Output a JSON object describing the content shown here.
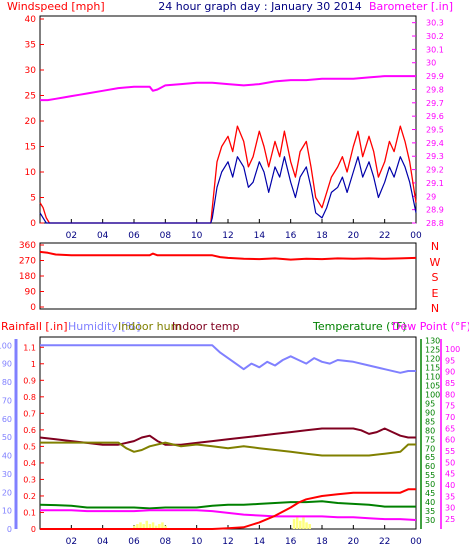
{
  "chart_data": [
    {
      "type": "line",
      "title": "24 hour graph day : January 30 2014",
      "left_axis_label": "Windspeed [mph]",
      "right_axis_label": "Barometer [.in]",
      "x_ticks": [
        "02",
        "04",
        "06",
        "08",
        "10",
        "12",
        "14",
        "16",
        "18",
        "20",
        "22",
        "00"
      ],
      "left_ticks": [
        "0",
        "5",
        "10",
        "15",
        "20",
        "25",
        "30",
        "35",
        "40"
      ],
      "right_ticks": [
        "28.8",
        "28.9",
        "29",
        "29.1",
        "29.2",
        "29.3",
        "29.4",
        "29.5",
        "29.6",
        "29.7",
        "29.8",
        "29.9",
        "30",
        "30.1",
        "30.2",
        "30.3"
      ],
      "left_range": [
        0,
        40
      ],
      "right_range": [
        28.8,
        30.35
      ],
      "x_range": [
        0,
        24
      ],
      "grid": false,
      "colors": {
        "gust": "#ff0000",
        "windspeed": "#0000aa",
        "barometer": "#ff00ff",
        "title": "#000080"
      },
      "series": [
        {
          "key": "barometer",
          "axis": "right",
          "x": [
            0,
            0.5,
            1,
            1.5,
            2,
            2.5,
            3,
            4,
            5,
            6,
            7,
            7.2,
            7.5,
            8,
            9,
            10,
            11,
            12,
            13,
            14,
            15,
            16,
            17,
            18,
            19,
            20,
            21,
            22,
            23,
            24
          ],
          "values": [
            29.72,
            29.72,
            29.73,
            29.74,
            29.75,
            29.76,
            29.77,
            29.79,
            29.81,
            29.82,
            29.82,
            29.79,
            29.8,
            29.83,
            29.84,
            29.85,
            29.85,
            29.84,
            29.83,
            29.84,
            29.86,
            29.87,
            29.87,
            29.88,
            29.88,
            29.88,
            29.89,
            29.9,
            29.9,
            29.9
          ]
        },
        {
          "key": "gust",
          "axis": "left",
          "x": [
            0,
            0.2,
            0.4,
            0.6,
            1,
            2,
            4,
            6,
            8,
            10,
            10.9,
            11.0,
            11.3,
            11.6,
            12,
            12.3,
            12.6,
            13,
            13.3,
            13.6,
            14,
            14.3,
            14.6,
            15,
            15.3,
            15.6,
            16,
            16.3,
            16.6,
            17,
            17.3,
            17.6,
            18,
            18.3,
            18.6,
            19,
            19.3,
            19.6,
            20,
            20.3,
            20.6,
            21,
            21.3,
            21.6,
            22,
            22.3,
            22.6,
            23,
            23.3,
            23.6,
            24
          ],
          "values": [
            4,
            3,
            1,
            0,
            0,
            0,
            0,
            0,
            0,
            0,
            0,
            3,
            12,
            15,
            17,
            14,
            19,
            16,
            11,
            13,
            18,
            15,
            11,
            16,
            13,
            18,
            12,
            9,
            14,
            16,
            11,
            5,
            3,
            6,
            9,
            11,
            13,
            10,
            15,
            18,
            13,
            17,
            14,
            9,
            12,
            16,
            14,
            19,
            16,
            12,
            4
          ]
        },
        {
          "key": "windspeed",
          "axis": "left",
          "x": [
            0,
            0.2,
            0.4,
            0.6,
            1,
            2,
            4,
            6,
            8,
            10,
            10.9,
            11.0,
            11.3,
            11.6,
            12,
            12.3,
            12.6,
            13,
            13.3,
            13.6,
            14,
            14.3,
            14.6,
            15,
            15.3,
            15.6,
            16,
            16.3,
            16.6,
            17,
            17.3,
            17.6,
            18,
            18.3,
            18.6,
            19,
            19.3,
            19.6,
            20,
            20.3,
            20.6,
            21,
            21.3,
            21.6,
            22,
            22.3,
            22.6,
            23,
            23.3,
            23.6,
            24
          ],
          "values": [
            2,
            1,
            0,
            0,
            0,
            0,
            0,
            0,
            0,
            0,
            0,
            1,
            7,
            10,
            12,
            9,
            13,
            11,
            7,
            8,
            12,
            10,
            6,
            11,
            9,
            13,
            8,
            5,
            9,
            11,
            7,
            2,
            1,
            3,
            6,
            7,
            9,
            6,
            10,
            13,
            9,
            12,
            9,
            5,
            8,
            11,
            9,
            13,
            11,
            8,
            2
          ]
        }
      ]
    },
    {
      "type": "line",
      "left_ticks": [
        "0",
        "90",
        "180",
        "270",
        "360"
      ],
      "right_labels": [
        "N",
        "W",
        "S",
        "E",
        "N"
      ],
      "left_range": [
        0,
        360
      ],
      "colors": {
        "direction": "#ff0000",
        "labels": "#ff0000"
      },
      "series": [
        {
          "key": "wind_direction",
          "x": [
            0,
            0.5,
            1,
            2,
            4,
            6,
            7,
            7.2,
            7.5,
            8,
            10,
            11,
            11.5,
            12,
            13,
            14,
            15,
            16,
            17,
            18,
            19,
            20,
            21,
            22,
            23,
            24
          ],
          "values": [
            320,
            315,
            305,
            300,
            300,
            300,
            300,
            310,
            300,
            300,
            300,
            300,
            290,
            285,
            280,
            278,
            282,
            275,
            280,
            278,
            282,
            280,
            282,
            280,
            282,
            285
          ]
        }
      ]
    },
    {
      "type": "line",
      "labels": {
        "rain": "Rainfall [.in]",
        "humidity": "Humidity [%]",
        "indoor_hum": "Indoor hum",
        "indoor_temp": "Indoor temp",
        "temperature": "Temperature (°F)",
        "dew_point": "Dew Point (°F)"
      },
      "left_ticks": [
        "0",
        "0.1",
        "0.2",
        "0.3",
        "0.4",
        "0.5",
        "0.6",
        "0.7",
        "0.8",
        "0.9",
        "1",
        "1.1"
      ],
      "humidity_ticks": [
        "0",
        "10",
        "20",
        "30",
        "40",
        "50",
        "60",
        "70",
        "80",
        "90",
        "100"
      ],
      "temp_ticks": [
        "30",
        "35",
        "40",
        "45",
        "50",
        "55",
        "60",
        "65",
        "70",
        "75",
        "80",
        "85",
        "90",
        "95",
        "100",
        "105",
        "110",
        "115",
        "120",
        "125",
        "130"
      ],
      "dew_ticks": [
        "25",
        "30",
        "35",
        "40",
        "45",
        "50",
        "55",
        "60",
        "65",
        "70",
        "75",
        "80",
        "85",
        "90",
        "95",
        "100"
      ],
      "rain_range": [
        0,
        1.15
      ],
      "humidity_range": [
        0,
        104.5
      ],
      "temp_range": [
        25,
        132
      ],
      "colors": {
        "rain": "#ff0000",
        "humidity": "#8080ff",
        "indoor_hum": "#808000",
        "indoor_temp": "#800020",
        "temperature": "#008000",
        "dew_point": "#ff00ff",
        "bars": "#ffff80",
        "temp_axis": "#008000",
        "dew_axis": "#ff00ff"
      },
      "series": [
        {
          "key": "humidity",
          "axis": "humidity",
          "x": [
            0,
            2,
            4,
            6,
            8,
            10,
            11,
            11.5,
            12,
            12.5,
            13,
            13.5,
            14,
            14.5,
            15,
            15.5,
            16,
            16.5,
            17,
            17.5,
            18,
            18.5,
            19,
            20,
            21,
            22,
            23,
            23.5,
            24
          ],
          "values": [
            100,
            100,
            100,
            100,
            100,
            100,
            100,
            96,
            93,
            90,
            87,
            90,
            88,
            91,
            89,
            92,
            94,
            92,
            90,
            93,
            91,
            90,
            92,
            91,
            89,
            87,
            85,
            86,
            86
          ]
        },
        {
          "key": "indoor_temp",
          "axis": "temp",
          "x": [
            0,
            1,
            2,
            3,
            4,
            5,
            6,
            6.5,
            7,
            7.5,
            8,
            9,
            10,
            11,
            12,
            13,
            14,
            15,
            16,
            17,
            18,
            19,
            20,
            20.5,
            21,
            21.5,
            22,
            22.5,
            23,
            23.5,
            24
          ],
          "values": [
            76,
            75,
            74,
            73,
            72,
            72,
            74,
            76,
            77,
            74,
            72,
            72,
            73,
            74,
            75,
            76,
            77,
            78,
            79,
            80,
            81,
            81,
            81,
            80,
            78,
            79,
            81,
            79,
            77,
            76,
            76
          ]
        },
        {
          "key": "indoor_hum",
          "axis": "humidity",
          "x": [
            0,
            2,
            4,
            5,
            5.5,
            6,
            6.5,
            7,
            8,
            9,
            10,
            11,
            12,
            13,
            14,
            15,
            16,
            17,
            18,
            19,
            20,
            21,
            22,
            23,
            23.5,
            24
          ],
          "values": [
            47,
            47,
            47,
            47,
            44,
            42,
            43,
            45,
            47,
            45,
            46,
            45,
            44,
            45,
            44,
            43,
            42,
            41,
            40,
            40,
            40,
            40,
            41,
            42,
            46,
            46
          ]
        },
        {
          "key": "temperature",
          "axis": "temp",
          "x": [
            0,
            1,
            2,
            3,
            4,
            5,
            6,
            7,
            8,
            9,
            10,
            11,
            12,
            13,
            14,
            15,
            16,
            17,
            18,
            19,
            20,
            21,
            22,
            23,
            24
          ],
          "values": [
            38.5,
            38.3,
            38,
            37,
            37,
            37,
            37,
            36.5,
            37,
            37,
            37,
            38,
            38.5,
            38.5,
            39,
            39.5,
            40,
            40,
            40.5,
            39.5,
            39,
            38.5,
            37.5,
            37.5,
            37.5
          ]
        },
        {
          "key": "dew_point",
          "axis": "temp",
          "x": [
            0,
            1,
            2,
            3,
            4,
            5,
            6,
            7,
            8,
            9,
            10,
            11,
            12,
            13,
            14,
            15,
            16,
            17,
            18,
            19,
            20,
            21,
            22,
            23,
            24
          ],
          "values": [
            35.5,
            35.5,
            35.5,
            35,
            35,
            35,
            35,
            35.5,
            35.5,
            35.5,
            35.5,
            35,
            34,
            33,
            32.5,
            32,
            32,
            32,
            32,
            31.5,
            31.5,
            31,
            30.5,
            30.5,
            30
          ]
        },
        {
          "key": "rain",
          "axis": "rain",
          "x": [
            0,
            10,
            11,
            12,
            13,
            14,
            15,
            16,
            16.5,
            17,
            18,
            19,
            20,
            21,
            22,
            23,
            23.5,
            24
          ],
          "values": [
            0,
            0,
            0,
            0.005,
            0.01,
            0.04,
            0.08,
            0.13,
            0.16,
            0.18,
            0.2,
            0.21,
            0.22,
            0.22,
            0.22,
            0.22,
            0.24,
            0.24
          ]
        }
      ],
      "rain_bars": {
        "x": [
          6.0,
          6.2,
          6.4,
          6.6,
          6.8,
          7.0,
          7.2,
          7.4,
          7.6,
          7.8,
          8.0,
          16.2,
          16.4,
          16.6,
          16.8,
          17.0,
          17.2
        ],
        "values": [
          0.02,
          0.03,
          0.04,
          0.03,
          0.05,
          0.03,
          0.04,
          0.02,
          0.03,
          0.04,
          0.02,
          0.06,
          0.08,
          0.05,
          0.07,
          0.04,
          0.03
        ]
      }
    }
  ]
}
